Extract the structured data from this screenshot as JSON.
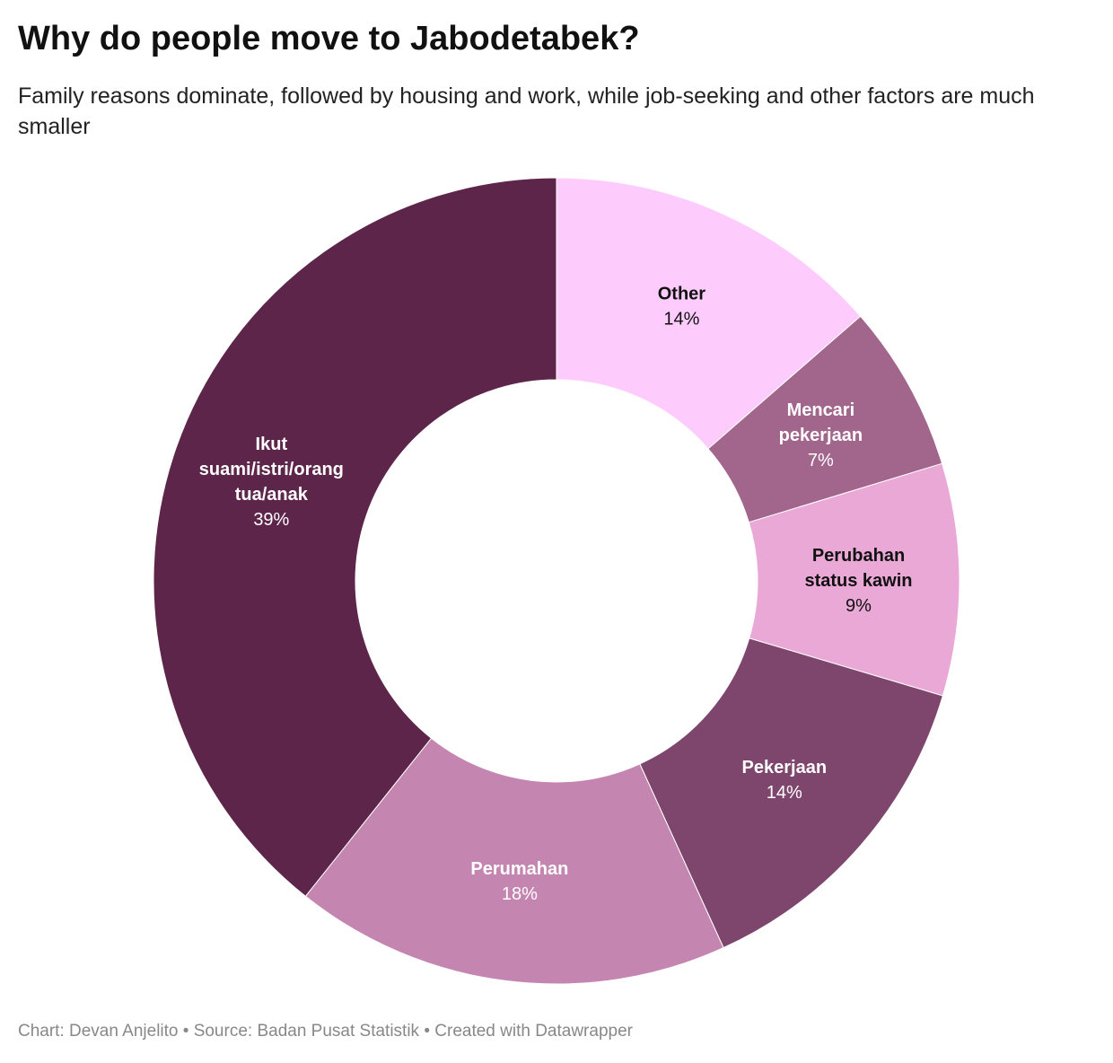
{
  "header": {
    "title": "Why do people move to Jabodetabek?",
    "subtitle": "Family reasons dominate, followed by housing and work, while job-seeking and other factors are much smaller"
  },
  "chart_data": {
    "type": "pie",
    "variant": "donut",
    "legend": "none (direct labels)",
    "slices": [
      {
        "name": "Other",
        "value": 13.6,
        "label": "14%",
        "color": "#fdccfd",
        "text_color": "#111111"
      },
      {
        "name": "Mencari pekerjaan",
        "value": 6.7,
        "label": "7%",
        "color": "#a2668c",
        "text_color": "#ffffff"
      },
      {
        "name": "Perubahan status kawin",
        "value": 9.3,
        "label": "9%",
        "color": "#eaa8d7",
        "text_color": "#111111"
      },
      {
        "name": "Pekerjaan",
        "value": 13.6,
        "label": "14%",
        "color": "#7e456d",
        "text_color": "#ffffff"
      },
      {
        "name": "Perumahan",
        "value": 17.5,
        "label": "18%",
        "color": "#c585b1",
        "text_color": "#ffffff"
      },
      {
        "name": "Ikut suami/istri/orang tua/anak",
        "value": 39.3,
        "label": "39%",
        "color": "#5c2549",
        "text_color": "#ffffff"
      }
    ],
    "label_lines": [
      [
        "Other"
      ],
      [
        "Mencari",
        "pekerjaan"
      ],
      [
        "Perubahan",
        "status kawin"
      ],
      [
        "Pekerjaan"
      ],
      [
        "Perumahan"
      ],
      [
        "Ikut",
        "suami/istri/orang",
        "tua/anak"
      ]
    ]
  },
  "footer": {
    "credit": "Chart: Devan Anjelito • Source: Badan Pusat Statistik • Created with Datawrapper"
  }
}
